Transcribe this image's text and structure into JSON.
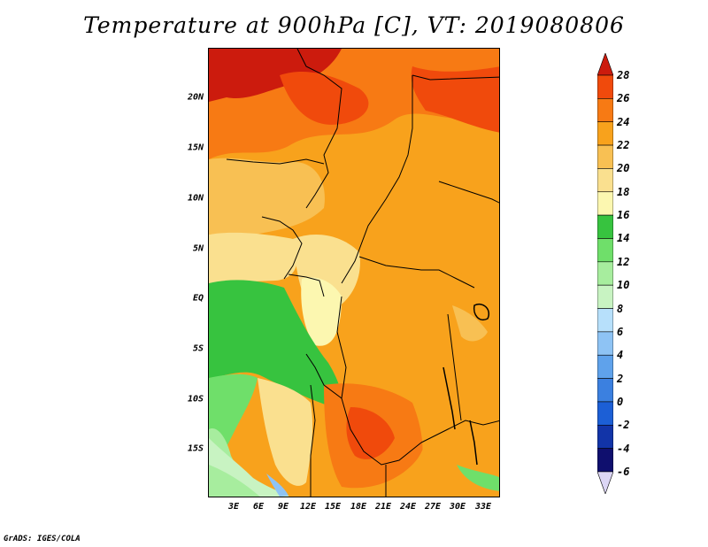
{
  "title": "Temperature at 900hPa [C], VT: 2019080806",
  "credit": "GrADS: IGES/COLA",
  "map": {
    "lat_labels": [
      "20N",
      "15N",
      "10N",
      "5N",
      "EQ",
      "5S",
      "10S",
      "15S"
    ],
    "lon_labels": [
      "3E",
      "6E",
      "9E",
      "12E",
      "15E",
      "18E",
      "21E",
      "24E",
      "27E",
      "30E",
      "33E"
    ],
    "lat_range": [
      -20,
      25
    ],
    "lon_range": [
      0,
      35
    ]
  },
  "colorbar": {
    "levels": [
      "28",
      "26",
      "24",
      "22",
      "20",
      "18",
      "16",
      "14",
      "12",
      "10",
      "8",
      "6",
      "4",
      "2",
      "0",
      "-2",
      "-4",
      "-6"
    ],
    "colors": [
      "#cc1b0d",
      "#f04a0c",
      "#f77a14",
      "#f8a21c",
      "#f8c053",
      "#fae08f",
      "#fcf7b0",
      "#37c33f",
      "#6fdf6a",
      "#a7ed9e",
      "#c8f3c2",
      "#b7e0fb",
      "#8ec3f4",
      "#5fa2eb",
      "#3b80e0",
      "#1c5fd6",
      "#1234a8",
      "#0f0f6e",
      "#dcd6f5"
    ]
  }
}
